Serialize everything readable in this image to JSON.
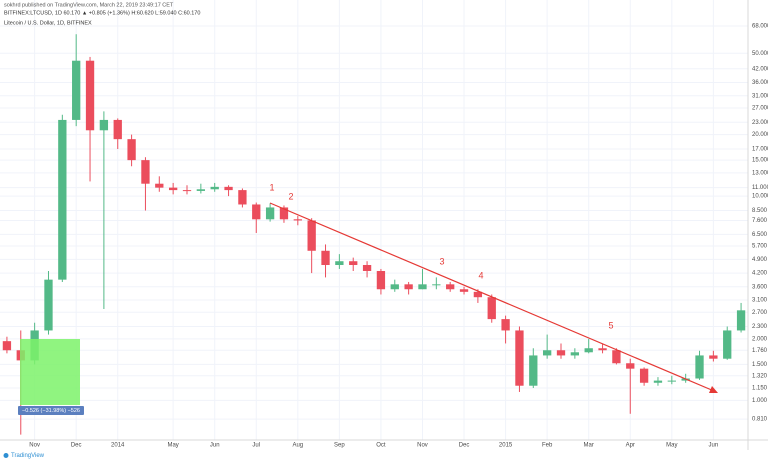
{
  "publisher_line": "sokhrd published on TradingView.com, March 22, 2019 23:49:17 CET",
  "symbol_line": "BITFINEX:LTCUSD, 1D  60.170 ▲ +0.805 (+1.36%) H:60.620 L:59.040 C:60.170",
  "footer": "TradingView",
  "chart_data": {
    "type": "candlestick",
    "title": "Litecoin / U.S. Dollar, 1D, BITFINEX",
    "log_scale": true,
    "grid": true,
    "up_color": "#53b987",
    "down_color": "#eb4d5c",
    "categories": [
      null,
      null,
      "Nov",
      null,
      null,
      "Dec",
      null,
      null,
      "2014",
      null,
      null,
      null,
      "May",
      null,
      null,
      "Jun",
      null,
      null,
      "Jul",
      null,
      null,
      "Aug",
      null,
      null,
      "Sep",
      null,
      null,
      "Oct",
      null,
      null,
      "Nov",
      null,
      null,
      "Dec",
      null,
      null,
      "2015",
      null,
      null,
      "Feb",
      null,
      null,
      "Mar",
      null,
      null,
      "Apr",
      null,
      null,
      "May",
      null,
      null,
      "Jun",
      null,
      null
    ],
    "open": [
      1.95,
      1.76,
      1.57,
      2.2,
      3.9,
      23.6,
      46,
      21,
      23.6,
      19,
      15,
      11.5,
      11,
      10.7,
      10.6,
      10.8,
      11.1,
      10.7,
      9.1,
      7.7,
      8.8,
      7.7,
      7.6,
      5.4,
      4.6,
      4.8,
      4.6,
      4.3,
      3.5,
      3.7,
      3.5,
      3.7,
      3.7,
      3.5,
      3.4,
      3.2,
      2.5,
      2.2,
      1.18,
      1.66,
      1.76,
      1.66,
      1.72,
      1.8,
      1.76,
      1.52,
      1.43,
      1.22,
      1.25,
      1.25,
      1.28,
      1.66,
      1.6,
      2.2
    ],
    "high": [
      2.05,
      2.2,
      2.4,
      4.3,
      25,
      62,
      48,
      26,
      24,
      20,
      15.5,
      12.5,
      11.6,
      11.3,
      11.5,
      11.6,
      11.3,
      10.9,
      9.3,
      9.2,
      9.0,
      8.0,
      7.8,
      5.8,
      5.2,
      5.0,
      4.8,
      4.4,
      3.9,
      3.8,
      4.4,
      4.0,
      3.8,
      3.6,
      3.5,
      3.3,
      2.6,
      2.3,
      1.8,
      2.1,
      1.9,
      1.8,
      2.0,
      1.9,
      1.8,
      1.6,
      1.45,
      1.3,
      1.32,
      1.35,
      1.75,
      1.75,
      2.3,
      3.0
    ],
    "low": [
      1.7,
      0.68,
      1.5,
      2.1,
      3.8,
      22,
      11.8,
      2.8,
      17,
      14,
      8.5,
      10.5,
      10.2,
      10.2,
      10.3,
      10.5,
      10.0,
      8.8,
      6.6,
      7.5,
      7.4,
      7.2,
      4.2,
      4.0,
      4.4,
      4.3,
      4.0,
      3.3,
      3.4,
      3.3,
      3.5,
      3.5,
      3.4,
      3.3,
      3.0,
      2.4,
      1.9,
      1.1,
      1.15,
      1.6,
      1.6,
      1.6,
      1.7,
      1.7,
      1.5,
      0.86,
      1.18,
      1.18,
      1.2,
      1.22,
      1.26,
      1.55,
      1.58,
      2.15
    ],
    "close": [
      1.76,
      1.57,
      2.2,
      3.9,
      23.6,
      46,
      21,
      23.6,
      19,
      15,
      11.5,
      11,
      10.7,
      10.6,
      10.8,
      11.1,
      10.7,
      9.1,
      7.7,
      8.8,
      7.7,
      7.6,
      5.4,
      4.6,
      4.8,
      4.6,
      4.3,
      3.5,
      3.7,
      3.5,
      3.7,
      3.7,
      3.5,
      3.4,
      3.2,
      2.5,
      2.2,
      1.18,
      1.66,
      1.76,
      1.66,
      1.72,
      1.8,
      1.76,
      1.52,
      1.43,
      1.22,
      1.25,
      1.25,
      1.28,
      1.66,
      1.6,
      2.2,
      2.76
    ],
    "ylim": [
      0.64,
      77
    ],
    "yticks": [
      {
        "value": 68,
        "label": "68.000"
      },
      {
        "value": 50,
        "label": "50.000"
      },
      {
        "value": 42,
        "label": "42.000"
      },
      {
        "value": 36,
        "label": "36.000"
      },
      {
        "value": 31,
        "label": "31.000"
      },
      {
        "value": 27,
        "label": "27.000"
      },
      {
        "value": 23,
        "label": "23.000"
      },
      {
        "value": 20,
        "label": "20.000"
      },
      {
        "value": 17,
        "label": "17.000"
      },
      {
        "value": 15,
        "label": "15.000"
      },
      {
        "value": 13,
        "label": "13.000"
      },
      {
        "value": 11,
        "label": "11.000"
      },
      {
        "value": 10,
        "label": "10.000"
      },
      {
        "value": 8.5,
        "label": "8.500"
      },
      {
        "value": 7.6,
        "label": "7.600"
      },
      {
        "value": 6.5,
        "label": "6.500"
      },
      {
        "value": 5.7,
        "label": "5.700"
      },
      {
        "value": 4.9,
        "label": "4.900"
      },
      {
        "value": 4.2,
        "label": "4.200"
      },
      {
        "value": 3.6,
        "label": "3.600"
      },
      {
        "value": 3.1,
        "label": "3.100"
      },
      {
        "value": 2.7,
        "label": "2.700"
      },
      {
        "value": 2.3,
        "label": "2.300"
      },
      {
        "value": 2,
        "label": "2.000"
      },
      {
        "value": 1.76,
        "label": "1.760"
      },
      {
        "value": 1.5,
        "label": "1.500"
      },
      {
        "value": 1.32,
        "label": "1.320"
      },
      {
        "value": 1.15,
        "label": "1.150"
      },
      {
        "value": 1,
        "label": "1.000"
      },
      {
        "value": 0.81,
        "label": "0.810"
      }
    ],
    "annotations": [
      "1",
      "2",
      "3",
      "4",
      "5"
    ],
    "measure_label": "−0.526 (−31.98%) −526"
  }
}
